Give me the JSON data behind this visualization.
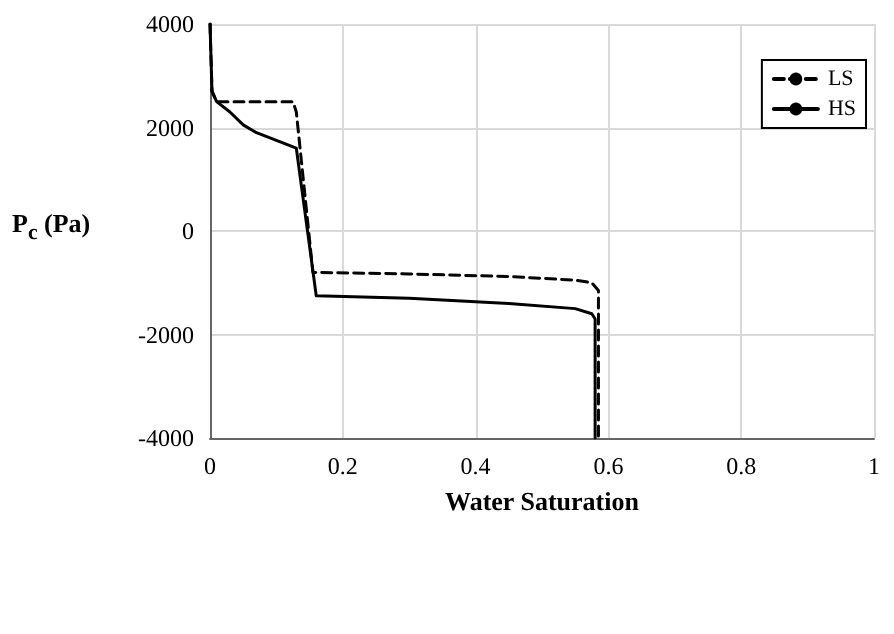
{
  "chart_data": {
    "type": "line",
    "xlabel": "Water Saturation",
    "ylabel": "P$_{c}$ (Pa)",
    "xlim": [
      0,
      1
    ],
    "xticks": [
      0,
      0.2,
      0.4,
      0.6,
      0.8,
      1
    ],
    "ylim": [
      -4000,
      4000
    ],
    "yticks": [
      -4000,
      -2000,
      0,
      2000,
      4000
    ],
    "grid": true,
    "legend": "top right",
    "marker": "none",
    "series": [
      {
        "name": "LS",
        "color": "#000000",
        "line_style": "dashed",
        "x": [
          0,
          0.003,
          0.01,
          0.125,
          0.13,
          0.155,
          0.3,
          0.45,
          0.55,
          0.575,
          0.585,
          0.585
        ],
        "values": [
          4000,
          2700,
          2500,
          2500,
          2300,
          -800,
          -830,
          -880,
          -950,
          -1000,
          -1150,
          -4000
        ]
      },
      {
        "name": "HS",
        "color": "#000000",
        "line_style": "solid",
        "x": [
          0,
          0.003,
          0.01,
          0.03,
          0.05,
          0.07,
          0.1,
          0.13,
          0.16,
          0.3,
          0.45,
          0.55,
          0.575,
          0.58,
          0.58
        ],
        "values": [
          4000,
          2700,
          2500,
          2300,
          2050,
          1900,
          1750,
          1600,
          -1250,
          -1300,
          -1400,
          -1500,
          -1600,
          -1700,
          -4000
        ]
      }
    ]
  }
}
